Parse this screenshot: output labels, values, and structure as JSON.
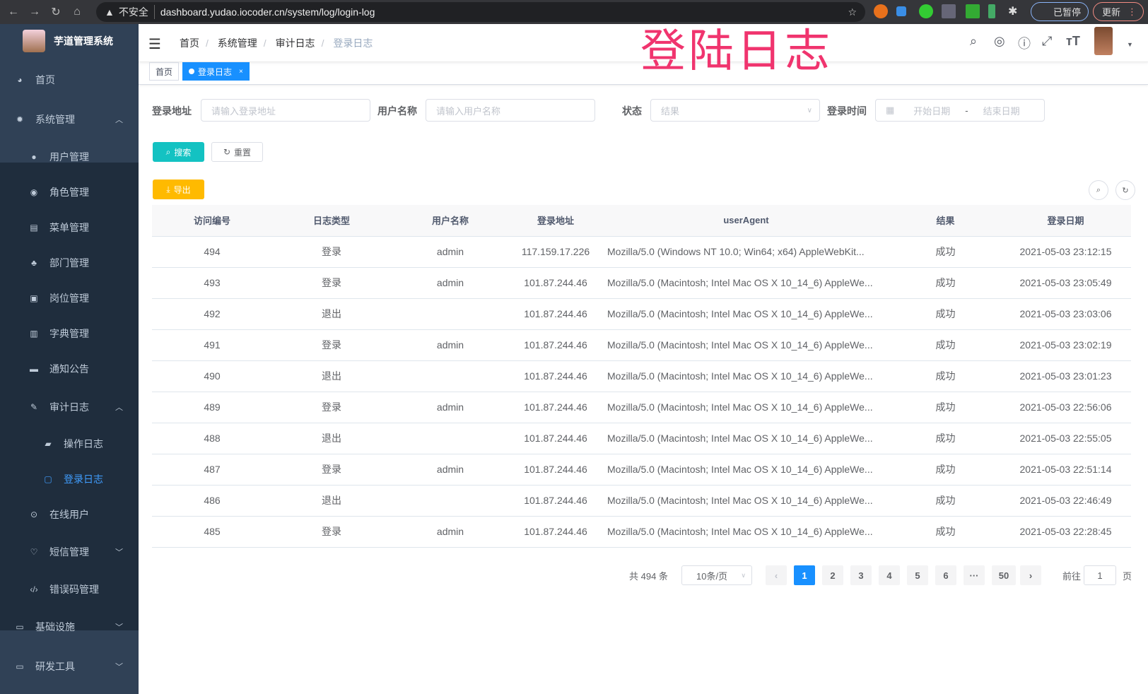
{
  "browser": {
    "url": "dashboard.yudao.iocoder.cn/system/log/login-log",
    "insecure": "不安全",
    "paused": "已暂停",
    "update": "更新"
  },
  "overlay_title": "登陆日志",
  "sidebar": {
    "brand": "芋道管理系统",
    "items": [
      {
        "label": "首页",
        "icon": "dashboard-icon"
      },
      {
        "label": "系统管理",
        "icon": "gear-icon",
        "expanded": true
      },
      {
        "label": "用户管理",
        "icon": "user-icon"
      },
      {
        "label": "角色管理",
        "icon": "peoples-icon"
      },
      {
        "label": "菜单管理",
        "icon": "tree-table-icon"
      },
      {
        "label": "部门管理",
        "icon": "tree-icon"
      },
      {
        "label": "岗位管理",
        "icon": "post-icon"
      },
      {
        "label": "字典管理",
        "icon": "dict-icon"
      },
      {
        "label": "通知公告",
        "icon": "message-icon"
      },
      {
        "label": "审计日志",
        "icon": "log-icon",
        "expanded": true
      },
      {
        "label": "操作日志",
        "icon": "form-icon"
      },
      {
        "label": "登录日志",
        "icon": "logininfor-icon",
        "active": true
      },
      {
        "label": "在线用户",
        "icon": "online-icon"
      },
      {
        "label": "短信管理",
        "icon": "validcode-icon"
      },
      {
        "label": "错误码管理",
        "icon": "code-icon"
      },
      {
        "label": "基础设施",
        "icon": "monitor-icon"
      },
      {
        "label": "研发工具",
        "icon": "tool-icon"
      }
    ]
  },
  "breadcrumb": [
    "首页",
    "系统管理",
    "审计日志",
    "登录日志"
  ],
  "tags": [
    "首页",
    "登录日志"
  ],
  "filters": {
    "ip_label": "登录地址",
    "ip_placeholder": "请输入登录地址",
    "user_label": "用户名称",
    "user_placeholder": "请输入用户名称",
    "status_label": "状态",
    "status_placeholder": "结果",
    "time_label": "登录时间",
    "start_placeholder": "开始日期",
    "range_sep": "-",
    "end_placeholder": "结束日期"
  },
  "buttons": {
    "search": "搜索",
    "reset": "重置",
    "export": "导出"
  },
  "table": {
    "headers": [
      "访问编号",
      "日志类型",
      "用户名称",
      "登录地址",
      "userAgent",
      "结果",
      "登录日期"
    ],
    "rows": [
      [
        "494",
        "登录",
        "admin",
        "117.159.17.226",
        "Mozilla/5.0 (Windows NT 10.0; Win64; x64) AppleWebKit...",
        "成功",
        "2021-05-03 23:12:15"
      ],
      [
        "493",
        "登录",
        "admin",
        "101.87.244.46",
        "Mozilla/5.0 (Macintosh; Intel Mac OS X 10_14_6) AppleWe...",
        "成功",
        "2021-05-03 23:05:49"
      ],
      [
        "492",
        "退出",
        "",
        "101.87.244.46",
        "Mozilla/5.0 (Macintosh; Intel Mac OS X 10_14_6) AppleWe...",
        "成功",
        "2021-05-03 23:03:06"
      ],
      [
        "491",
        "登录",
        "admin",
        "101.87.244.46",
        "Mozilla/5.0 (Macintosh; Intel Mac OS X 10_14_6) AppleWe...",
        "成功",
        "2021-05-03 23:02:19"
      ],
      [
        "490",
        "退出",
        "",
        "101.87.244.46",
        "Mozilla/5.0 (Macintosh; Intel Mac OS X 10_14_6) AppleWe...",
        "成功",
        "2021-05-03 23:01:23"
      ],
      [
        "489",
        "登录",
        "admin",
        "101.87.244.46",
        "Mozilla/5.0 (Macintosh; Intel Mac OS X 10_14_6) AppleWe...",
        "成功",
        "2021-05-03 22:56:06"
      ],
      [
        "488",
        "退出",
        "",
        "101.87.244.46",
        "Mozilla/5.0 (Macintosh; Intel Mac OS X 10_14_6) AppleWe...",
        "成功",
        "2021-05-03 22:55:05"
      ],
      [
        "487",
        "登录",
        "admin",
        "101.87.244.46",
        "Mozilla/5.0 (Macintosh; Intel Mac OS X 10_14_6) AppleWe...",
        "成功",
        "2021-05-03 22:51:14"
      ],
      [
        "486",
        "退出",
        "",
        "101.87.244.46",
        "Mozilla/5.0 (Macintosh; Intel Mac OS X 10_14_6) AppleWe...",
        "成功",
        "2021-05-03 22:46:49"
      ],
      [
        "485",
        "登录",
        "admin",
        "101.87.244.46",
        "Mozilla/5.0 (Macintosh; Intel Mac OS X 10_14_6) AppleWe...",
        "成功",
        "2021-05-03 22:28:45"
      ]
    ]
  },
  "pagination": {
    "total": "共 494 条",
    "page_size": "10条/页",
    "pages": [
      "1",
      "2",
      "3",
      "4",
      "5",
      "6",
      "···",
      "50"
    ],
    "current": "1",
    "goto_label": "前往",
    "goto_value": "1",
    "goto_suffix": "页"
  },
  "colors": {
    "primary": "#1890ff",
    "search": "#13c2c2",
    "export": "#ffba00",
    "sidebar": "#304156",
    "overlay": "#f0346e"
  }
}
